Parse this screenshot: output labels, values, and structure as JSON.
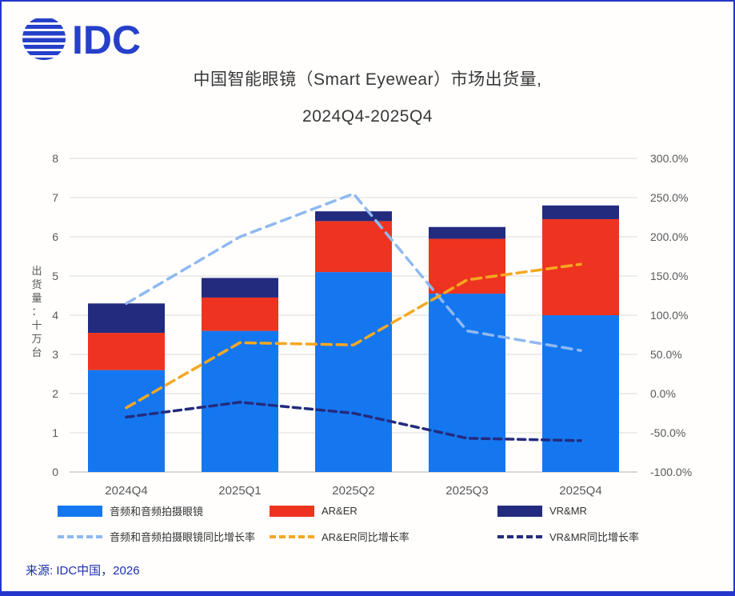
{
  "logo": {
    "text": "IDC"
  },
  "title": {
    "line1": "中国智能眼镜（Smart Eyewear）市场出货量,",
    "line2": "2024Q4-2025Q4"
  },
  "source": {
    "text": "来源: IDC中国，2026"
  },
  "colors": {
    "brand": "#2640c9",
    "frame": "#2436cc",
    "title_text": "#383838",
    "source_text": "#1d2fb0",
    "grid": "#d9d9d9",
    "axis_line": "#b3b3b3",
    "axis_text": "#595959"
  },
  "chart_data": {
    "type": "bar",
    "subtype": "stacked-bar-with-lines",
    "title": "中国智能眼镜（Smart Eyewear）市场出货量, 2024Q4-2025Q4",
    "categories": [
      "2024Q4",
      "2025Q1",
      "2025Q2",
      "2025Q3",
      "2025Q4"
    ],
    "bar_series": [
      {
        "name": "音频和音频拍摄眼镜",
        "color": "#1477F0",
        "values": [
          2.6,
          3.6,
          5.1,
          4.55,
          4.0
        ]
      },
      {
        "name": "AR&ER",
        "color": "#EE3420",
        "values": [
          0.95,
          0.85,
          1.3,
          1.4,
          2.45
        ]
      },
      {
        "name": "VR&MR",
        "color": "#232B7E",
        "values": [
          0.75,
          0.5,
          0.25,
          0.3,
          0.35
        ]
      }
    ],
    "line_series": [
      {
        "name": "音频和音频拍摄眼镜同比增长率",
        "color": "#8FB9F2",
        "values": [
          115,
          200,
          255,
          80,
          55
        ]
      },
      {
        "name": "AR&ER同比增长率",
        "color": "#F6A821",
        "values": [
          -18,
          65,
          62,
          145,
          165
        ]
      },
      {
        "name": "VR&MR同比增长率",
        "color": "#232B7E",
        "values": [
          -30,
          -11,
          -25,
          -57,
          -60
        ]
      }
    ],
    "left_axis": {
      "label": "出货量：十万台",
      "min": 0,
      "max": 8,
      "step": 1
    },
    "right_axis": {
      "min": -100,
      "max": 300,
      "step": 50,
      "format": "percent_one_decimal"
    },
    "grid": true,
    "legend_position": "bottom"
  }
}
